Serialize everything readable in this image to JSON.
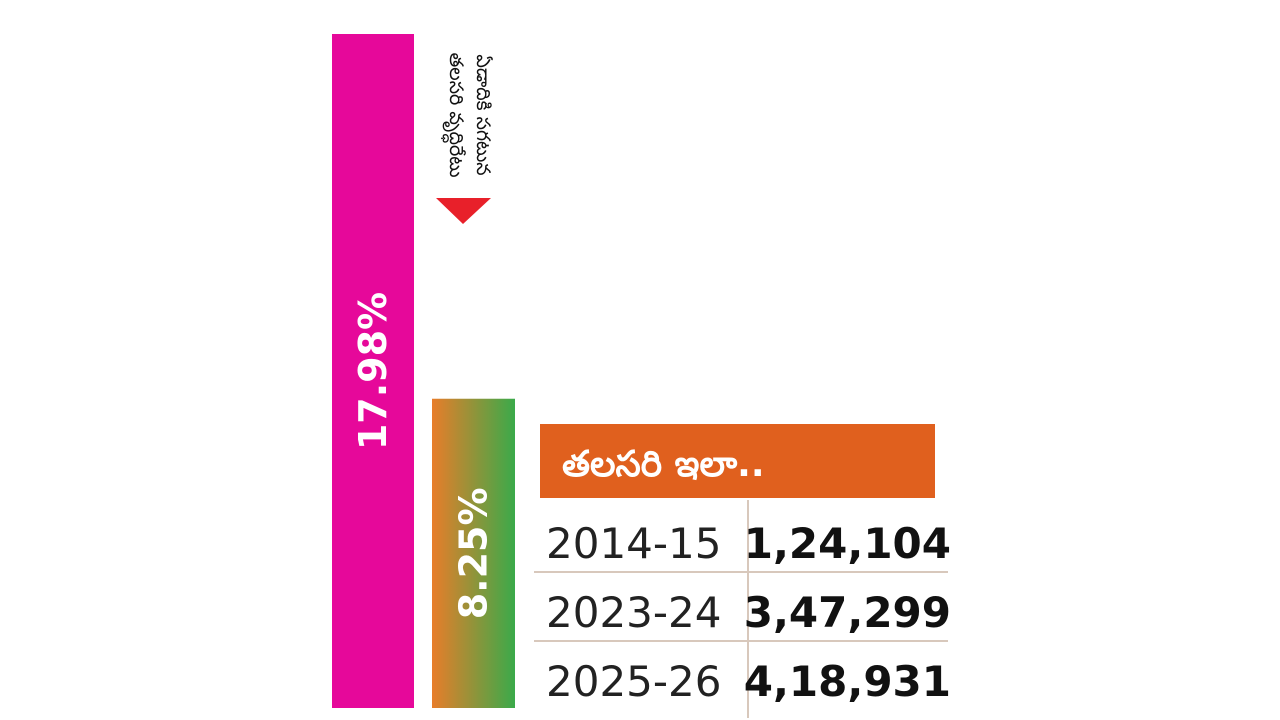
{
  "chart_data": {
    "type": "bar",
    "bars": [
      {
        "label": "17.98%",
        "value": 17.98,
        "color": "#e6089a"
      },
      {
        "label": "8.25%",
        "value": 8.25,
        "colors": [
          "#e87d2a",
          "#3aaa4a"
        ]
      }
    ],
    "annotation": {
      "lines": [
        "ఏడాదికి సగటున",
        "తలసరి వృద్ధిరేటు"
      ],
      "arrow_color": "#e8202a"
    },
    "table": {
      "title": "తలసరి ఇలా..",
      "header_color": "#e0601e",
      "rows": [
        {
          "year": "2014-15",
          "value": "1,24,104"
        },
        {
          "year": "2023-24",
          "value": "3,47,299"
        },
        {
          "year": "2025-26",
          "value": "4,18,931"
        }
      ]
    }
  }
}
